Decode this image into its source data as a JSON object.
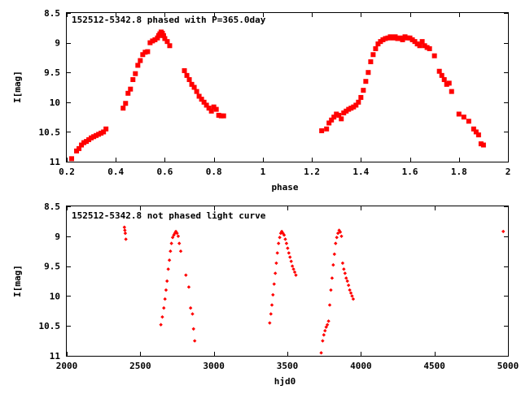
{
  "chart_data": [
    {
      "type": "scatter",
      "title": "152512-5342.8 phased with P=365.0day",
      "xlabel": "phase",
      "ylabel": "I[mag]",
      "xlim": [
        0.2,
        2.0
      ],
      "ylim": [
        8.5,
        11.0
      ],
      "y_inverted": true,
      "grid": false,
      "marker_color": "#ff0000",
      "marker": "plus-large",
      "x_ticks": [
        0.2,
        0.4,
        0.6,
        0.8,
        1.0,
        1.2,
        1.4,
        1.6,
        1.8,
        2.0
      ],
      "x_tick_labels": [
        "0.2",
        "0.4",
        "0.6",
        "0.8",
        "1",
        "1.2",
        "1.4",
        "1.6",
        "1.8",
        "2"
      ],
      "y_ticks": [
        8.5,
        9.0,
        9.5,
        10.0,
        10.5,
        11.0
      ],
      "y_tick_labels": [
        "8.5",
        "9",
        "9.5",
        "10",
        "10.5",
        "11"
      ],
      "x": [
        0.22,
        0.24,
        0.25,
        0.26,
        0.27,
        0.28,
        0.29,
        0.3,
        0.31,
        0.32,
        0.33,
        0.34,
        0.35,
        0.36,
        0.43,
        0.44,
        0.45,
        0.46,
        0.47,
        0.48,
        0.49,
        0.5,
        0.51,
        0.52,
        0.53,
        0.54,
        0.55,
        0.56,
        0.57,
        0.575,
        0.58,
        0.585,
        0.59,
        0.595,
        0.6,
        0.61,
        0.62,
        0.68,
        0.69,
        0.7,
        0.71,
        0.72,
        0.73,
        0.74,
        0.75,
        0.76,
        0.77,
        0.78,
        0.79,
        0.8,
        0.81,
        0.82,
        0.83,
        0.84,
        1.24,
        1.26,
        1.27,
        1.28,
        1.29,
        1.3,
        1.31,
        1.32,
        1.33,
        1.34,
        1.35,
        1.36,
        1.37,
        1.38,
        1.39,
        1.4,
        1.41,
        1.42,
        1.43,
        1.44,
        1.45,
        1.46,
        1.47,
        1.48,
        1.49,
        1.5,
        1.51,
        1.52,
        1.53,
        1.54,
        1.55,
        1.56,
        1.57,
        1.58,
        1.59,
        1.6,
        1.61,
        1.62,
        1.63,
        1.64,
        1.65,
        1.66,
        1.67,
        1.68,
        1.7,
        1.72,
        1.73,
        1.74,
        1.75,
        1.76,
        1.77,
        1.8,
        1.82,
        1.84,
        1.86,
        1.87,
        1.88,
        1.89,
        1.9
      ],
      "y": [
        10.95,
        10.82,
        10.78,
        10.72,
        10.68,
        10.66,
        10.63,
        10.6,
        10.58,
        10.56,
        10.54,
        10.52,
        10.5,
        10.45,
        10.1,
        10.02,
        9.85,
        9.78,
        9.62,
        9.52,
        9.38,
        9.3,
        9.2,
        9.16,
        9.15,
        9.0,
        8.97,
        8.95,
        8.92,
        8.88,
        8.85,
        8.82,
        8.84,
        8.88,
        8.93,
        8.98,
        9.05,
        9.47,
        9.55,
        9.62,
        9.7,
        9.75,
        9.82,
        9.9,
        9.95,
        10.0,
        10.05,
        10.1,
        10.15,
        10.08,
        10.12,
        10.22,
        10.23,
        10.23,
        10.48,
        10.45,
        10.35,
        10.3,
        10.25,
        10.2,
        10.22,
        10.28,
        10.18,
        10.15,
        10.12,
        10.1,
        10.08,
        10.05,
        10.0,
        9.92,
        9.8,
        9.65,
        9.5,
        9.32,
        9.2,
        9.1,
        9.02,
        8.98,
        8.95,
        8.93,
        8.92,
        8.9,
        8.92,
        8.9,
        8.93,
        8.92,
        8.95,
        8.9,
        8.92,
        8.92,
        8.95,
        8.98,
        9.02,
        9.05,
        8.98,
        9.05,
        9.08,
        9.1,
        9.22,
        9.48,
        9.55,
        9.62,
        9.7,
        9.68,
        9.82,
        10.2,
        10.25,
        10.32,
        10.45,
        10.5,
        10.55,
        10.7,
        10.72
      ]
    },
    {
      "type": "scatter",
      "title": "152512-5342.8 not phased light curve",
      "xlabel": "hjd0",
      "ylabel": "I[mag]",
      "xlim": [
        2000,
        5000
      ],
      "ylim": [
        8.5,
        11.0
      ],
      "y_inverted": true,
      "grid": false,
      "marker_color": "#ff0000",
      "marker": "diamond-small",
      "x_ticks": [
        2000,
        2500,
        3000,
        3500,
        4000,
        4500,
        5000
      ],
      "x_tick_labels": [
        "2000",
        "2500",
        "3000",
        "3500",
        "4000",
        "4500",
        "5000"
      ],
      "y_ticks": [
        8.5,
        9.0,
        9.5,
        10.0,
        10.5,
        11.0
      ],
      "y_tick_labels": [
        "8.5",
        "9",
        "9.5",
        "10",
        "10.5",
        "11"
      ],
      "x": [
        2392,
        2395,
        2398,
        2402,
        2640,
        2650,
        2660,
        2668,
        2675,
        2682,
        2690,
        2698,
        2705,
        2712,
        2720,
        2728,
        2735,
        2742,
        2750,
        2758,
        2765,
        2775,
        2810,
        2830,
        2842,
        2855,
        2862,
        2870,
        3380,
        3388,
        3395,
        3402,
        3410,
        3418,
        3425,
        3432,
        3440,
        3448,
        3455,
        3462,
        3470,
        3478,
        3486,
        3494,
        3502,
        3510,
        3518,
        3526,
        3534,
        3542,
        3550,
        3558,
        3730,
        3740,
        3748,
        3756,
        3764,
        3772,
        3780,
        3788,
        3796,
        3804,
        3812,
        3820,
        3828,
        3836,
        3844,
        3852,
        3860,
        3868,
        3876,
        3884,
        3892,
        3900,
        3908,
        3916,
        3924,
        3932,
        3940,
        3948,
        4968
      ],
      "y": [
        8.85,
        8.9,
        8.95,
        9.05,
        10.48,
        10.35,
        10.2,
        10.05,
        9.9,
        9.75,
        9.55,
        9.4,
        9.25,
        9.12,
        9.02,
        8.98,
        8.95,
        8.92,
        8.95,
        9.0,
        9.12,
        9.25,
        9.65,
        9.85,
        10.2,
        10.3,
        10.55,
        10.75,
        10.45,
        10.3,
        10.15,
        9.98,
        9.8,
        9.62,
        9.45,
        9.28,
        9.12,
        9.02,
        8.95,
        8.92,
        8.95,
        8.98,
        9.05,
        9.12,
        9.2,
        9.28,
        9.35,
        9.42,
        9.5,
        9.55,
        9.6,
        9.65,
        10.95,
        10.75,
        10.65,
        10.58,
        10.52,
        10.48,
        10.42,
        10.15,
        9.9,
        9.7,
        9.48,
        9.3,
        9.12,
        9.02,
        8.95,
        8.9,
        8.93,
        9.0,
        9.45,
        9.55,
        9.62,
        9.7,
        9.75,
        9.82,
        9.9,
        9.95,
        10.0,
        10.05,
        8.92
      ]
    }
  ]
}
